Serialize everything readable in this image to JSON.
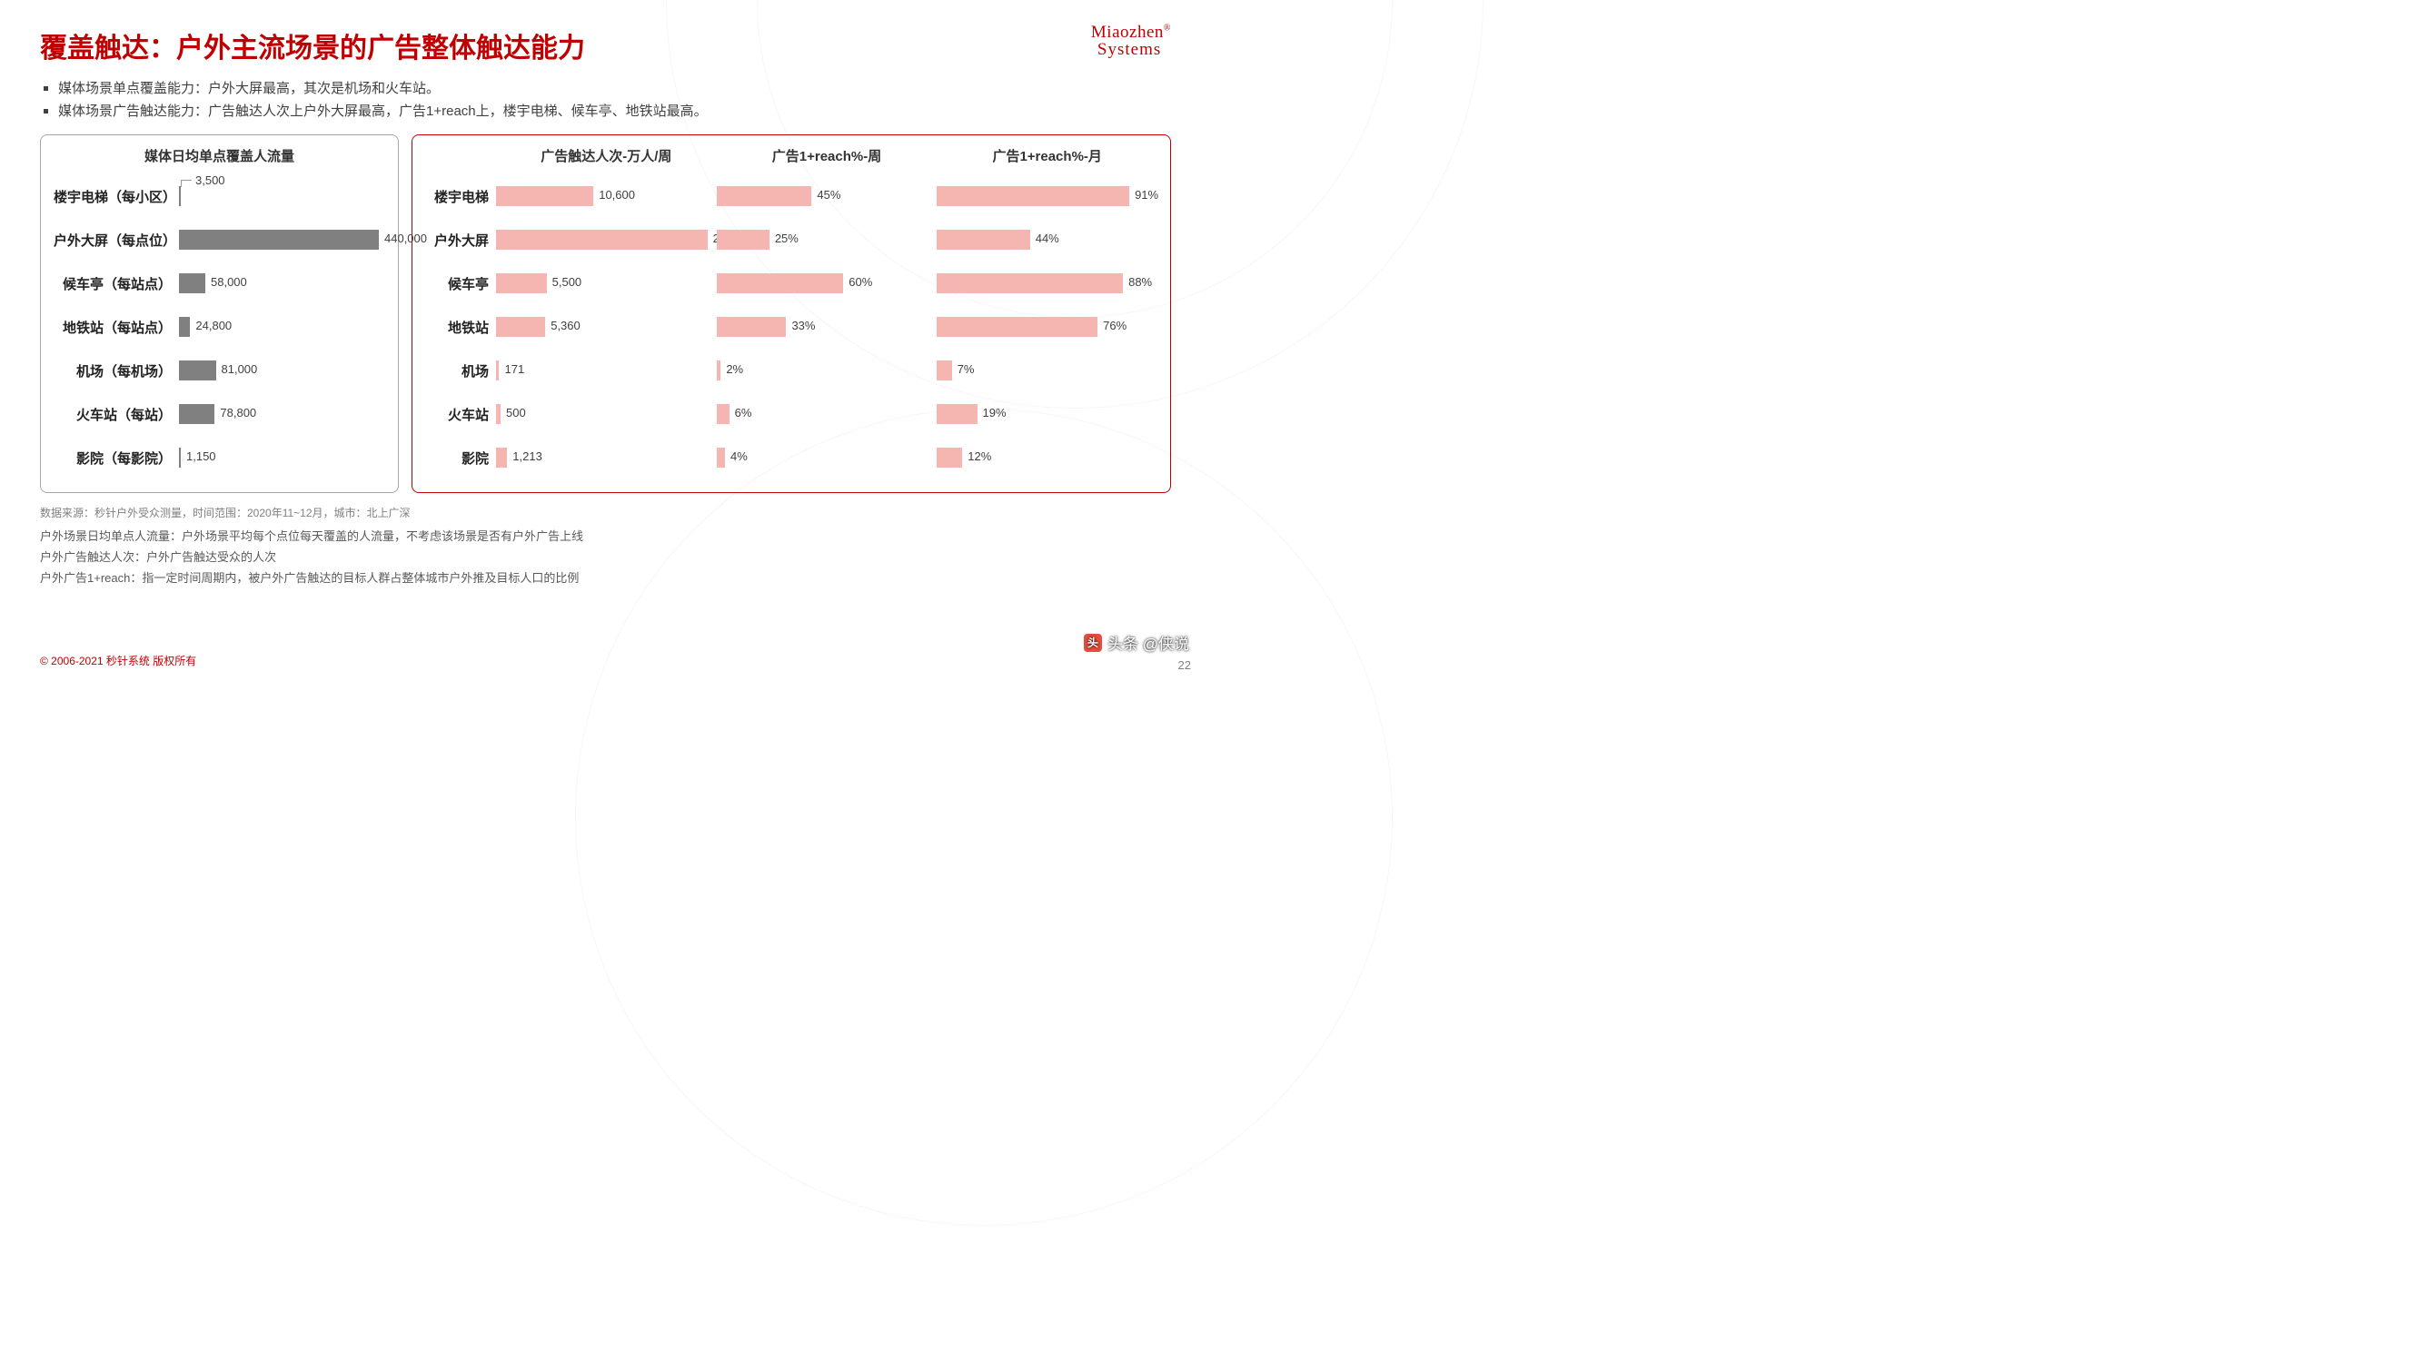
{
  "title": "覆盖触达：户外主流场景的广告整体触达能力",
  "logo": {
    "line1": "Miaozhen",
    "line2": "Systems"
  },
  "bullets": [
    "媒体场景单点覆盖能力：户外大屏最高，其次是机场和火车站。",
    "媒体场景广告触达能力：广告触达人次上户外大屏最高，广告1+reach上，楼宇电梯、候车亭、地铁站最高。"
  ],
  "left_panel": {
    "header": "媒体日均单点覆盖人流量",
    "bar_color": "#808080",
    "max": 440000,
    "rows": [
      {
        "label": "楼宇电梯（每小区）",
        "value": 3500,
        "display": "3,500",
        "leader": true
      },
      {
        "label": "户外大屏（每点位）",
        "value": 440000,
        "display": "440,000"
      },
      {
        "label": "候车亭（每站点）",
        "value": 58000,
        "display": "58,000"
      },
      {
        "label": "地铁站（每站点）",
        "value": 24800,
        "display": "24,800"
      },
      {
        "label": "机场（每机场）",
        "value": 81000,
        "display": "81,000"
      },
      {
        "label": "火车站（每站）",
        "value": 78800,
        "display": "78,800"
      },
      {
        "label": "影院（每影院）",
        "value": 1150,
        "display": "1,150"
      }
    ]
  },
  "right_panel": {
    "bar_color": "#f5b5b0",
    "columns": [
      {
        "header": "广告触达人次-万人/周",
        "max": 23000
      },
      {
        "header": "广告1+reach%-周",
        "max": 100
      },
      {
        "header": "广告1+reach%-月",
        "max": 100
      }
    ],
    "rows": [
      {
        "label": "楼宇电梯",
        "values": [
          10600,
          45,
          91
        ],
        "displays": [
          "10,600",
          "45%",
          "91%"
        ]
      },
      {
        "label": "户外大屏",
        "values": [
          23000,
          25,
          44
        ],
        "displays": [
          "23,000",
          "25%",
          "44%"
        ]
      },
      {
        "label": "候车亭",
        "values": [
          5500,
          60,
          88
        ],
        "displays": [
          "5,500",
          "60%",
          "88%"
        ]
      },
      {
        "label": "地铁站",
        "values": [
          5360,
          33,
          76
        ],
        "displays": [
          "5,360",
          "33%",
          "76%"
        ]
      },
      {
        "label": "机场",
        "values": [
          171,
          2,
          7
        ],
        "displays": [
          "171",
          "2%",
          "7%"
        ]
      },
      {
        "label": "火车站",
        "values": [
          500,
          6,
          19
        ],
        "displays": [
          "500",
          "6%",
          "19%"
        ]
      },
      {
        "label": "影院",
        "values": [
          1213,
          4,
          12
        ],
        "displays": [
          "1,213",
          "4%",
          "12%"
        ]
      }
    ]
  },
  "footnotes": {
    "source": "数据来源：秒针户外受众测量，时间范围：2020年11~12月，城市：北上广深",
    "lines": [
      "户外场景日均单点人流量：户外场景平均每个点位每天覆盖的人流量，不考虑该场景是否有户外广告上线",
      "户外广告触达人次：户外广告触达受众的人次",
      "户外广告1+reach：指一定时间周期内，被户外广告触达的目标人群占整体城市户外推及目标人口的比例"
    ]
  },
  "copyright": "© 2006-2021 秒针系统 版权所有",
  "page_number": "22",
  "watermark": "头条 @侠说"
}
